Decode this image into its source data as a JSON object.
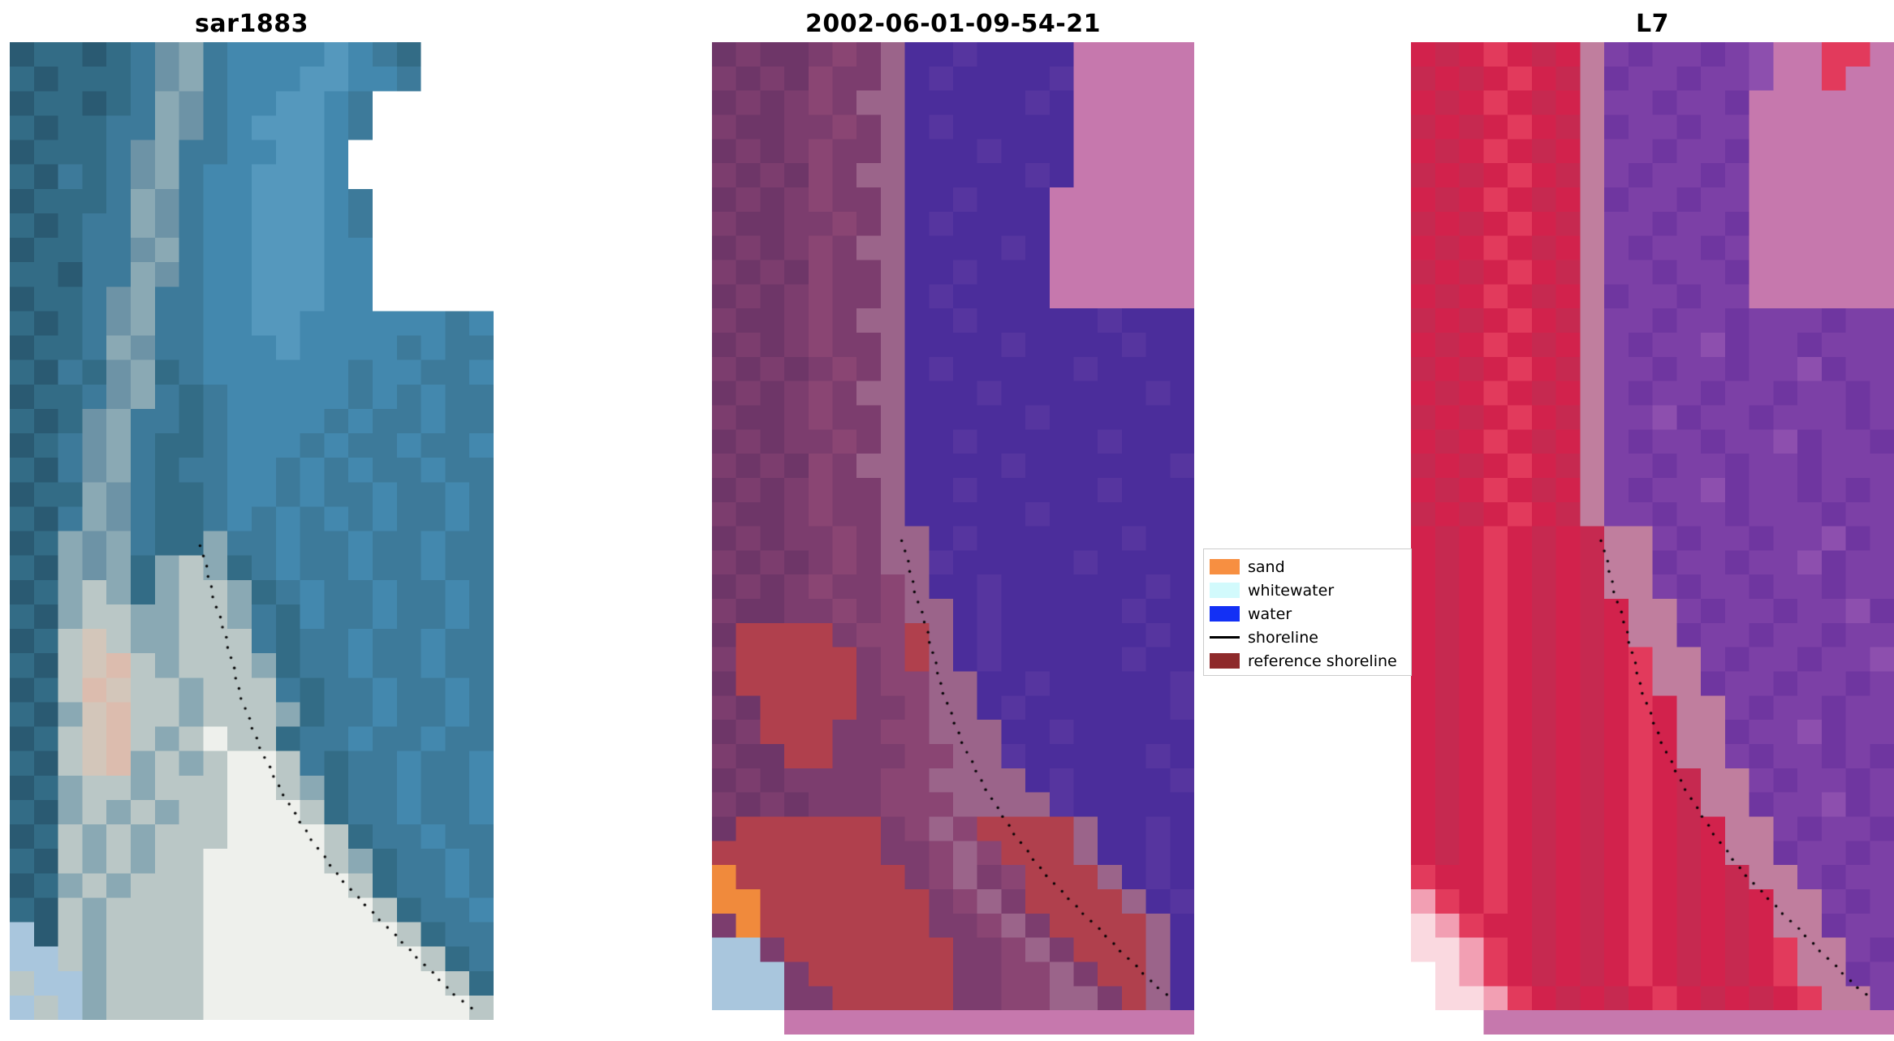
{
  "figure": {
    "background": "#ffffff"
  },
  "panels": [
    {
      "title": "sar1883",
      "palette": {
        "a": "#2a5a72",
        "b": "#336c86",
        "c": "#3d7a9a",
        "d": "#4388ae",
        "e": "#5598bd",
        "f": "#6d93a6",
        "g": "#8aa9b4",
        "h": "#bac7c6",
        "i": "#d3c6ba",
        "j": "#dcbcae",
        "k": "#eef0ec",
        "L": "#a9c6dd",
        "W": "#ffffff"
      },
      "rows": [
        "abbabcfgcddddedcbWWW",
        "babbbcfgcdddeeddcWWW",
        "abbabcgfcddeedcWWWWW",
        "babbccgfcdeeedcWWWWW",
        "abbbcfgccddeedWWWWWW",
        "bacbcfgcddeeedWWWWWW",
        "abbbcgfcddeeedcWWWWW",
        "babccgfcddeeedcWWWWW",
        "abbccfgcddeeeddWWWWW",
        "bbaccgfcddeeeddWWWWW",
        "abbcfgccddeeeddWWWWW",
        "babcfgccddeeddddddcd",
        "abbcgfccdddeddddcdcc",
        "bacbfgbcddddddcddccd",
        "abbcfgcbcdddddcdcdcc",
        "babfgccbcddddcdccdcc",
        "abcfgcbbcdddcdccdccd",
        "bacfgcbccddcdcdccdcc",
        "abbgfcbbcddcdccdccdc",
        "bacgfcbbcdcdcdcdccdc",
        "abgfgcbbgccdccdccdcc",
        "bagfgbghgbcdccdccdcc",
        "abghgbghhgbcdccdccdc",
        "baghhgghhgcbdccdccdc",
        "abhihgghhhcbccdccdcc",
        "bahijhghhhgbccdccdcc",
        "abhjihhghhhcbccdccdc",
        "bagijhhghhhgbccdccdc",
        "abhijhghkhhbccdccdcc",
        "bahijghghkkhcbccdccd",
        "abghhghhhkkhgbccdccd",
        "baghghghhkkkhbccdccd",
        "abhghghhhkkkkhbccdcc",
        "bahghghhkkkkkhgbccdc",
        "abghghhhkkkkkkhbccdc",
        "bahghhhhkkkkkkkhbccd",
        "Lahghhhhkkkkkkkkhbcc",
        "LLhghhhhkkkkkkkkkhbc",
        "hLLghhhhkkkkkkkkkkhb",
        "LhLghhhhkkkkkkkkkkkh"
      ]
    },
    {
      "title": "2002-06-01-09-54-21",
      "palette": {
        "p": "#6e3668",
        "q": "#7c3d6e",
        "r": "#8a4573",
        "u": "#4b2d9b",
        "v": "#56359f",
        "P": "#c678ad",
        "R": "#b0404d",
        "O": "#f08a3c",
        "L": "#a9c6dd",
        "g": "#9b648a",
        "W": "#ffffff"
      },
      "rows": [
        "pqppqrqguuvuuuuPPPPP",
        "qpqprqqguvuuuuvPPPPP",
        "pqpqrqgguuuuuvuPPPPP",
        "qppqqrqguvuuuuuPPPPP",
        "pqpqrqqguuuvuuuPPPPP",
        "qpqprqgguuuuuvuPPPPP",
        "pqpqrqqguuvuuuPPPPPP",
        "qppqqrqguvuuuuPPPPPP",
        "pqpqrqgguuuuvuPPPPPP",
        "qpqprqqguuvuuuPPPPPP",
        "pqpqrqqguvuuuuPPPPPP",
        "qppqrqgguuvuuuuuvuuu",
        "pqpqrqqguuuuvuuuuvuu",
        "qpqpqrqguvuuuuuvuuuu",
        "pqpqrqgguuuvuuuuuuvu",
        "qppqrqqguuuuuvuuuuuu",
        "pqpqqrqguuvuuuuuvuuu",
        "qpqprqgguuuuvuuuuuuv",
        "pqpqrqqguuvuuuuuvuuu",
        "qppqrqqguuuuuvuuuuuu",
        "pqpqqrqgguvuuuuuuvuu",
        "qpqpqrqggvuuuuuvuuuu",
        "pqpqrqqrguuvuuuuuuvu",
        "qppqqrqrgguvuuuuuvuu",
        "pRRRRqrrRguvuuuuuuvu",
        "qRRRRRqrRguvuuuuuvuu",
        "pRRRRRqrrgguuvuuuuuv",
        "qpRRRRqqrgguvuuuuuuv",
        "pqRRRqqrrggguuvuuuuu",
        "qppRRqqqrrggvuuuuuvu",
        "pqpqqqqrrgggguvuuuuv",
        "qpqpqqqrrrggggvuuuuu",
        "pRRRRRRqrgrRRRRguuvu",
        "RRRRRRRqqrgrRRRguuvu",
        "ORRRRRRRqrgqrRRRguvu",
        "OORRRRRRRqrgqRRRRguv",
        "qORRRRRRRqqrgqRRRRgu",
        "LLqRRRRRRRqqrgqRRRgu",
        "LLLqRRRRRRqqrrgqRRgu",
        "LLLqqRRRRRqqrrggqRgu",
        "...PPPPPPPPPPPPPPPPP"
      ]
    },
    {
      "title": "L7",
      "palette": {
        "x": "#d2224c",
        "y": "#c62950",
        "z": "#e23a5c",
        "t": "#c07e9e",
        "u": "#7c40a6",
        "v": "#6f36a0",
        "s": "#8d4fae",
        "P": "#c678ad",
        "E": "#f29fb3",
        "F": "#fad9e0",
        "W": "#ffffff"
      },
      "rows": [
        "xyxzxyxtuvuuvusPPzzP",
        "yxyxzxytvuuvuusPPzPP",
        "xyxzxyxtuuvuuvPPPPPP",
        "yxyxzxytvuuvuuPPPPPP",
        "xyxzxyxtuuvuuvPPPPPP",
        "yxyxzxytuvuuvuPPPPPP",
        "xyxzxyxtvuuvuuPPPPPP",
        "yxyxzxytuuvuuvPPPPPP",
        "xyxzxyxtuvuuvuPPPPPP",
        "yxyxzxytuuvuuvPPPPPP",
        "xyxzxyxtvuuvuuPPPPPP",
        "yxyxzxytuuvuuvuuuvuu",
        "xyxzxyxtuvuusvuuvuuu",
        "yxyxzxytuuvuuvuusvuu",
        "xyxzxyxtuvuuvuuvuuvu",
        "yxyxzxytuusvuuvuuuvu",
        "xyxzxyxtuvuuvuusvuuv",
        "yxyxzxytuuvuuvuuvuuu",
        "xyxzxyxtuvuusvuuvuvu",
        "yxyxzxytuuvuuvuuuvuu",
        "xyxzxyxyttuvuuvuusvu",
        "xyxzxyxyttvuuvuusvuu",
        "xyxzxyxyttuvuuvuuvuu",
        "xyxzxyxyxttuvuuvuusv",
        "xyxzxyxyxttvuuvuuvuu",
        "xyxzxyxyxzttuvuuvuus",
        "xyxzxyxyxzttvuuvuuvu",
        "xyxzxyxyxzxttuvuuvuu",
        "xyxzxyxyxzxttvuusvuu",
        "xyxzxyxyxzxttuvuuvuv",
        "xyxzxyxyxzxyttuvuuvu",
        "xyxzxyxyxzxyttvuusvu",
        "xyxzxyxyxzxyxttuvuuv",
        "xyxzxyxyxzxyxttvuuvu",
        "zxxzxyxyxzxyxyttuvuu",
        "Ezxzxyxyxzxyxyxttuvu",
        "FEzxxyxyxzxyxyxttvuu",
        "FFEzxyxyxzxyxyxzttuv",
        "WFEzxyxyxzxyxyxzttvu",
        "WFFEzxyxyxzxyxyxzttu",
        "...PPPPPPPPPPPPPPPPP"
      ]
    }
  ],
  "shoreline": {
    "color": "#000000",
    "dot_radius": 1.7,
    "dot_step": 13,
    "points": [
      [
        0.395,
        0.515
      ],
      [
        0.41,
        0.545
      ],
      [
        0.425,
        0.575
      ],
      [
        0.445,
        0.605
      ],
      [
        0.46,
        0.635
      ],
      [
        0.475,
        0.665
      ],
      [
        0.5,
        0.7
      ],
      [
        0.525,
        0.73
      ],
      [
        0.555,
        0.76
      ],
      [
        0.59,
        0.79
      ],
      [
        0.63,
        0.82
      ],
      [
        0.675,
        0.85
      ],
      [
        0.72,
        0.875
      ],
      [
        0.77,
        0.9
      ],
      [
        0.82,
        0.925
      ],
      [
        0.87,
        0.95
      ],
      [
        0.91,
        0.97
      ],
      [
        0.953,
        0.988
      ]
    ]
  },
  "legend": {
    "items": [
      {
        "label": "sand",
        "swatch": "patch",
        "color": "#f78f41"
      },
      {
        "label": "whitewater",
        "swatch": "patch",
        "color": "#d2fafc"
      },
      {
        "label": "water",
        "swatch": "patch",
        "color": "#1330f5"
      },
      {
        "label": "shoreline",
        "swatch": "line",
        "color": "#000000"
      },
      {
        "label": "reference shoreline",
        "swatch": "patch",
        "color": "#8e2a2b"
      }
    ]
  }
}
